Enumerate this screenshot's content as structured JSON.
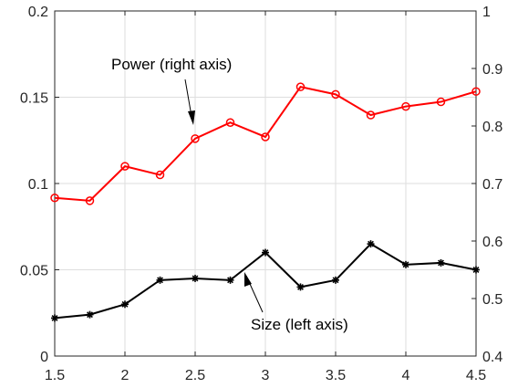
{
  "chart_data": {
    "type": "line",
    "x": [
      1.5,
      1.75,
      2,
      2.25,
      2.5,
      2.75,
      3,
      3.25,
      3.5,
      3.75,
      4,
      4.25,
      4.5
    ],
    "xlim": [
      1.5,
      4.5
    ],
    "x_ticks": [
      "1.5",
      "2",
      "2.5",
      "3",
      "3.5",
      "4",
      "4.5"
    ],
    "y_left": {
      "ylim": [
        0,
        0.2
      ],
      "ticks": [
        "0",
        "0.05",
        "0.1",
        "0.15",
        "0.2"
      ]
    },
    "y_right": {
      "ylim": [
        0.4,
        1
      ],
      "ticks": [
        "0.4",
        "0.5",
        "0.6",
        "0.7",
        "0.8",
        "0.9",
        "1"
      ]
    },
    "grid": true,
    "series": [
      {
        "axis": "right",
        "color": "#ff0000",
        "marker": "circle",
        "values": [
          0.675,
          0.67,
          0.73,
          0.715,
          0.778,
          0.806,
          0.781,
          0.868,
          0.855,
          0.819,
          0.834,
          0.842,
          0.86
        ]
      },
      {
        "axis": "left",
        "color": "#000000",
        "marker": "asterisk",
        "values": [
          0.022,
          0.024,
          0.03,
          0.044,
          0.045,
          0.044,
          0.06,
          0.04,
          0.044,
          0.065,
          0.053,
          0.054,
          0.05
        ]
      }
    ],
    "annotations": [
      {
        "text": "Power (right axis)"
      },
      {
        "text": "Size (left axis)"
      }
    ]
  }
}
